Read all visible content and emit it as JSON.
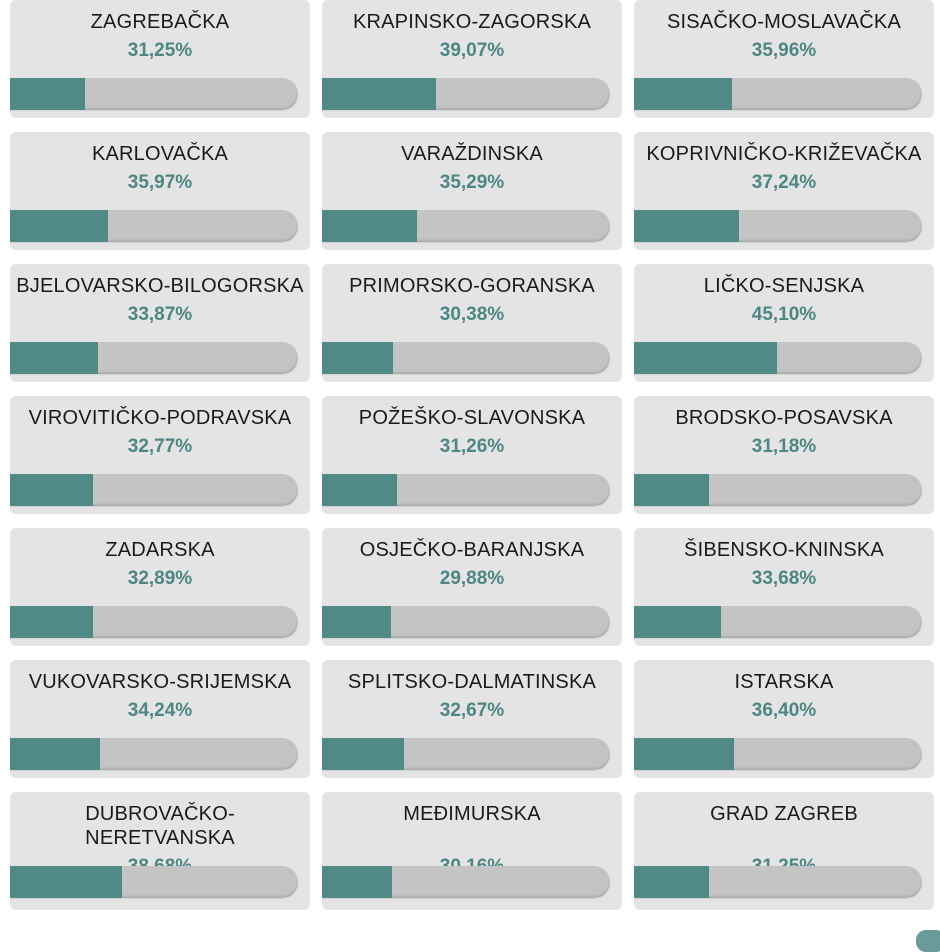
{
  "counties": [
    {
      "name": "ZAGREBAČKA",
      "percent": "31,25%",
      "fill": 0.3125
    },
    {
      "name": "KRAPINSKO-ZAGORSKA",
      "percent": "39,07%",
      "fill": 0.3907
    },
    {
      "name": "SISAČKO-MOSLAVAČKA",
      "percent": "35,96%",
      "fill": 0.3596
    },
    {
      "name": "KARLOVAČKA",
      "percent": "35,97%",
      "fill": 0.3597
    },
    {
      "name": "VARAŽDINSKA",
      "percent": "35,29%",
      "fill": 0.3529
    },
    {
      "name": "KOPRIVNIČKO-KRIŽEVAČKA",
      "percent": "37,24%",
      "fill": 0.3724
    },
    {
      "name": "BJELOVARSKO-BILOGORSKA",
      "percent": "33,87%",
      "fill": 0.3387
    },
    {
      "name": "PRIMORSKO-GORANSKA",
      "percent": "30,38%",
      "fill": 0.3038
    },
    {
      "name": "LIČKO-SENJSKA",
      "percent": "45,10%",
      "fill": 0.451
    },
    {
      "name": "VIROVITIČKO-PODRAVSKA",
      "percent": "32,77%",
      "fill": 0.3277
    },
    {
      "name": "POŽEŠKO-SLAVONSKA",
      "percent": "31,26%",
      "fill": 0.3126
    },
    {
      "name": "BRODSKO-POSAVSKA",
      "percent": "31,18%",
      "fill": 0.3118
    },
    {
      "name": "ZADARSKA",
      "percent": "32,89%",
      "fill": 0.3289
    },
    {
      "name": "OSJEČKO-BARANJSKA",
      "percent": "29,88%",
      "fill": 0.2988
    },
    {
      "name": "ŠIBENSKO-KNINSKA",
      "percent": "33,68%",
      "fill": 0.3368
    },
    {
      "name": "VUKOVARSKO-SRIJEMSKA",
      "percent": "34,24%",
      "fill": 0.3424
    },
    {
      "name": "SPLITSKO-DALMATINSKA",
      "percent": "32,67%",
      "fill": 0.3267
    },
    {
      "name": "ISTARSKA",
      "percent": "36,40%",
      "fill": 0.364
    },
    {
      "name": "DUBROVAČKO-\nNERETVANSKA",
      "percent": "38,68%",
      "fill": 0.3868
    },
    {
      "name": "MEĐIMURSKA",
      "percent": "30,16%",
      "fill": 0.3016
    },
    {
      "name": "GRAD ZAGREB",
      "percent": "31,25%",
      "fill": 0.3125
    }
  ],
  "colors": {
    "card_background": "#e4e4e4",
    "bar_track": "#c4c4c4",
    "bar_fill": "#508986",
    "percent_text": "#4e8684",
    "name_text": "#1a1a1a"
  }
}
